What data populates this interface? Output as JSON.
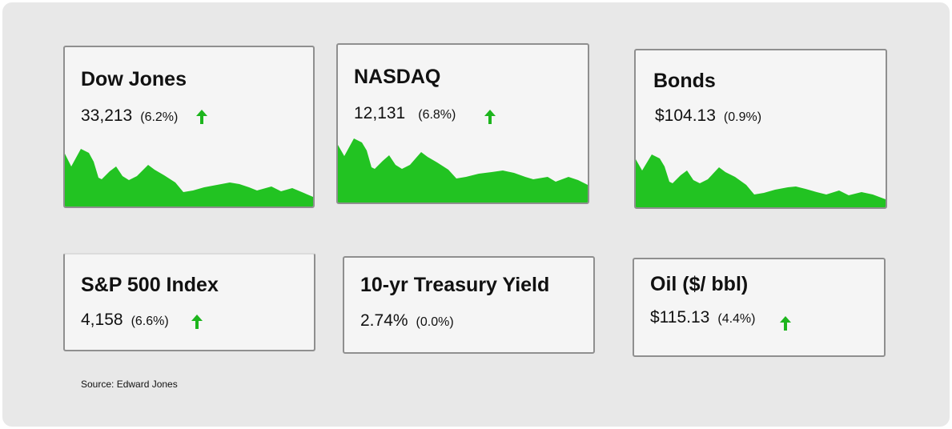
{
  "colors": {
    "up": "#1db51d",
    "spark_fill": "#22c322"
  },
  "cards": [
    {
      "title": "Dow Jones",
      "value": "33,213",
      "change": "(6.2%)",
      "trend_icon": "arrow-up-icon"
    },
    {
      "title": "NASDAQ",
      "value": "12,131",
      "change": "(6.8%)",
      "trend_icon": "arrow-up-icon"
    },
    {
      "title": "Bonds",
      "value": "$104.13",
      "change": "(0.9%)"
    },
    {
      "title": "S&P 500 Index",
      "value": "4,158",
      "change": "(6.6%)",
      "trend_icon": "arrow-up-icon"
    },
    {
      "title": "10-yr Treasury Yield",
      "value": "2.74%",
      "change": "(0.0%)"
    },
    {
      "title": "Oil ($/ bbl)",
      "value": "$115.13",
      "change": "(4.4%)",
      "trend_icon": "arrow-up-icon"
    }
  ],
  "source": "Source: Edward Jones"
}
